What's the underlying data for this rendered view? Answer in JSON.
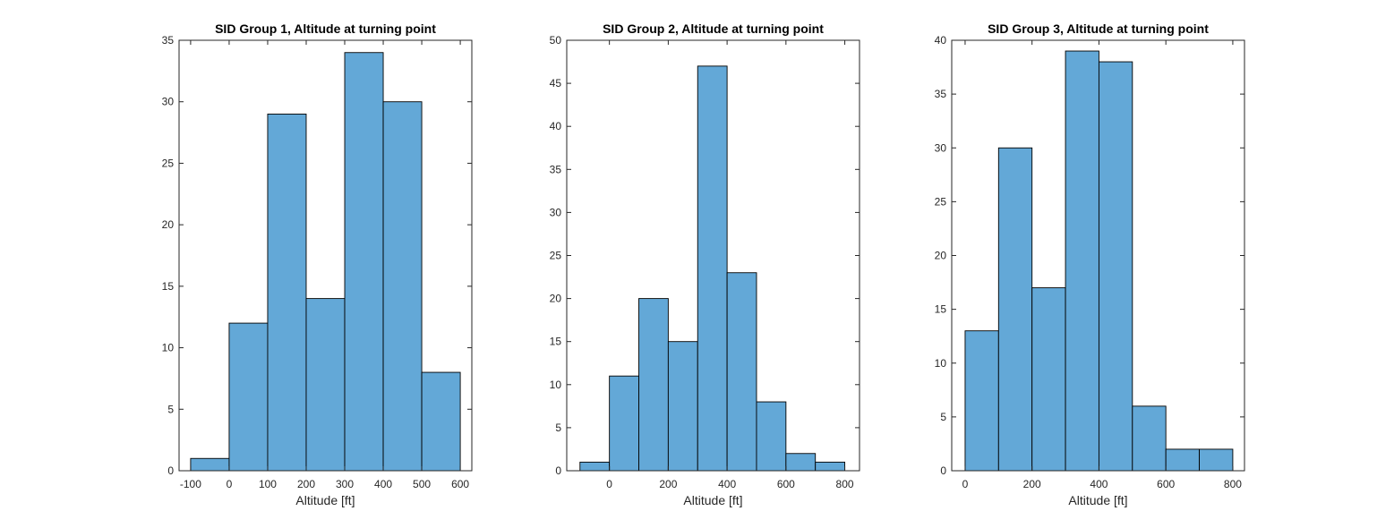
{
  "chart_data": [
    {
      "type": "bar",
      "title": "SID Group 1, Altitude at turning point",
      "xlabel": "Altitude [ft]",
      "ylabel": "",
      "bin_edges": [
        -100,
        0,
        100,
        200,
        300,
        400,
        500,
        600
      ],
      "values": [
        1,
        12,
        29,
        14,
        34,
        30,
        8
      ],
      "xlim": [
        -130,
        630
      ],
      "ylim": [
        0,
        35
      ],
      "xticks": [
        -100,
        0,
        100,
        200,
        300,
        400,
        500,
        600
      ],
      "yticks": [
        0,
        5,
        10,
        15,
        20,
        25,
        30,
        35
      ],
      "bar_color": "#63a8d7",
      "edge_color": "#000000",
      "grid": false,
      "legend": "none"
    },
    {
      "type": "bar",
      "title": "SID Group 2, Altitude at turning point",
      "xlabel": "Altitude [ft]",
      "ylabel": "",
      "bin_edges": [
        -100,
        0,
        100,
        200,
        300,
        400,
        500,
        600,
        700,
        800
      ],
      "values": [
        1,
        11,
        20,
        15,
        47,
        23,
        8,
        2,
        1
      ],
      "xlim": [
        -145,
        850
      ],
      "ylim": [
        0,
        50
      ],
      "xticks": [
        0,
        200,
        400,
        600,
        800
      ],
      "yticks": [
        0,
        5,
        10,
        15,
        20,
        25,
        30,
        35,
        40,
        45,
        50
      ],
      "bar_color": "#63a8d7",
      "edge_color": "#000000",
      "grid": false,
      "legend": "none"
    },
    {
      "type": "bar",
      "title": "SID Group 3, Altitude at turning point",
      "xlabel": "Altitude [ft]",
      "ylabel": "",
      "bin_edges": [
        0,
        100,
        200,
        300,
        400,
        500,
        600,
        700,
        800
      ],
      "values": [
        13,
        30,
        17,
        39,
        38,
        6,
        2,
        2
      ],
      "xlim": [
        -40,
        835
      ],
      "ylim": [
        0,
        40
      ],
      "xticks": [
        0,
        200,
        400,
        600,
        800
      ],
      "yticks": [
        0,
        5,
        10,
        15,
        20,
        25,
        30,
        35,
        40
      ],
      "bar_color": "#63a8d7",
      "edge_color": "#000000",
      "grid": false,
      "legend": "none"
    }
  ]
}
